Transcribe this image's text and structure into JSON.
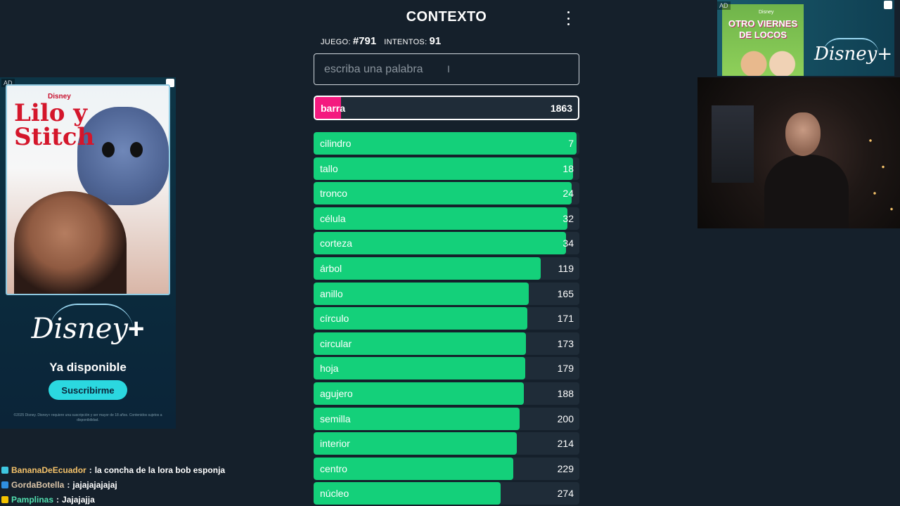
{
  "game": {
    "title": "CONTEXTO",
    "game_label": "JUEGO:",
    "game_number": "#791",
    "attempts_label": "INTENTOS:",
    "attempts": "91",
    "input_placeholder": "escriba una palabra",
    "current_guess": {
      "word": "barra",
      "rank": "1863",
      "fill": 0.1
    },
    "guesses": [
      {
        "word": "cilindro",
        "rank": "7",
        "fill": 0.99
      },
      {
        "word": "tallo",
        "rank": "18",
        "fill": 0.975
      },
      {
        "word": "tronco",
        "rank": "24",
        "fill": 0.97
      },
      {
        "word": "célula",
        "rank": "32",
        "fill": 0.955
      },
      {
        "word": "corteza",
        "rank": "34",
        "fill": 0.95
      },
      {
        "word": "árbol",
        "rank": "119",
        "fill": 0.855
      },
      {
        "word": "anillo",
        "rank": "165",
        "fill": 0.81
      },
      {
        "word": "círculo",
        "rank": "171",
        "fill": 0.805
      },
      {
        "word": "circular",
        "rank": "173",
        "fill": 0.8
      },
      {
        "word": "hoja",
        "rank": "179",
        "fill": 0.795
      },
      {
        "word": "agujero",
        "rank": "188",
        "fill": 0.79
      },
      {
        "word": "semilla",
        "rank": "200",
        "fill": 0.775
      },
      {
        "word": "interior",
        "rank": "214",
        "fill": 0.765
      },
      {
        "word": "centro",
        "rank": "229",
        "fill": 0.75
      },
      {
        "word": "núcleo",
        "rank": "274",
        "fill": 0.705
      }
    ]
  },
  "ad_left": {
    "tag": "AD",
    "brand": "Disney",
    "poster_title_1": "Lilo y",
    "poster_title_2": "Stitch",
    "logo": "Disney",
    "logo_plus": "+",
    "available": "Ya disponible",
    "cta": "Suscribirme",
    "legal": "©2025 Disney. Disney+ requiere una suscripción y ser mayor de 18 años. Contenidos sujetos a disponibilidad."
  },
  "ad_right": {
    "tag": "AD",
    "brand": "Disney",
    "poster_title_1": "OTRO VIERNES",
    "poster_title_2": "DE LOCOS",
    "logo": "Disney+"
  },
  "chat": [
    {
      "user": "BananaDeEcuador",
      "color": "#f4c26a",
      "badge_color": "#3ec6e0",
      "message": "la concha de la lora bob esponja"
    },
    {
      "user": "GordaBotella",
      "color": "#d9c4a8",
      "badge_color": "#2f8fe0",
      "message": "jajajajajajaj"
    },
    {
      "user": "Pamplinas",
      "color": "#52e0b0",
      "badge_color": "#f2c200",
      "message": "Jajajajja"
    }
  ],
  "colors": {
    "background": "#15202b",
    "good": "#14d07a",
    "far": "#f41a7f"
  }
}
